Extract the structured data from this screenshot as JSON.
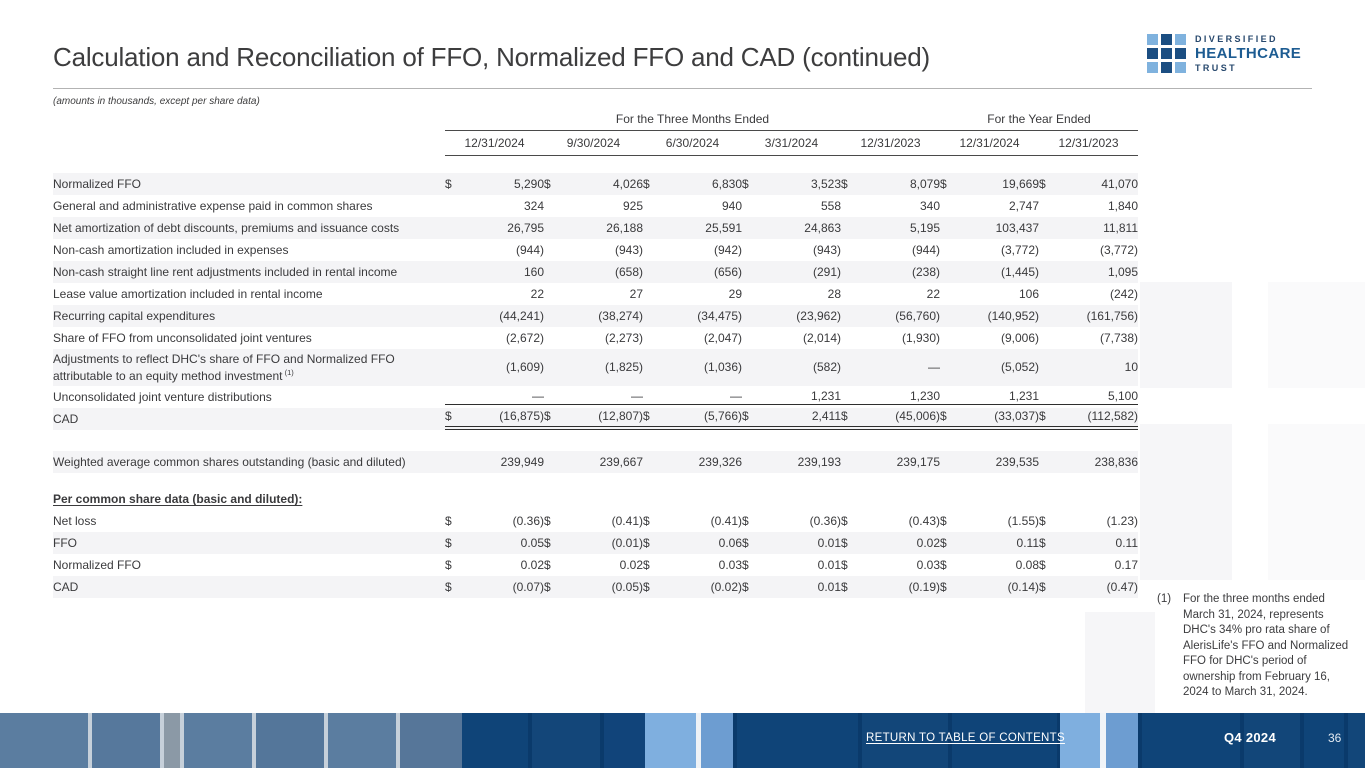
{
  "page": {
    "title": "Calculation and Reconciliation of FFO, Normalized FFO and CAD (continued)",
    "note": "(amounts in thousands, except per share data)"
  },
  "logo": {
    "line1": "DIVERSIFIED",
    "line2": "HEALTHCARE",
    "line3": "TRUST",
    "dark_blue": "#1b4e82",
    "light_blue": "#7fb2de"
  },
  "table": {
    "currency_symbol": "$",
    "group_headers": [
      {
        "label": "For the Three Months Ended",
        "span": 5
      },
      {
        "label": "For the Year Ended",
        "span": 2
      }
    ],
    "column_headers": [
      "12/31/2024",
      "9/30/2024",
      "6/30/2024",
      "3/31/2024",
      "12/31/2023",
      "12/31/2024",
      "12/31/2023"
    ],
    "rows": [
      {
        "label": "Normalized FFO",
        "dollar": true,
        "shaded": true,
        "values": [
          "5,290",
          "4,026",
          "6,830",
          "3,523",
          "8,079",
          "19,669",
          "41,070"
        ]
      },
      {
        "label": "General and administrative expense paid in common shares",
        "values": [
          "324",
          "925",
          "940",
          "558",
          "340",
          "2,747",
          "1,840"
        ]
      },
      {
        "label": "Net amortization of debt discounts, premiums and issuance costs",
        "shaded": true,
        "values": [
          "26,795",
          "26,188",
          "25,591",
          "24,863",
          "5,195",
          "103,437",
          "11,811"
        ]
      },
      {
        "label": "Non-cash amortization included in expenses",
        "values": [
          "(944)",
          "(943)",
          "(942)",
          "(943)",
          "(944)",
          "(3,772)",
          "(3,772)"
        ]
      },
      {
        "label": "Non-cash straight line rent adjustments included in rental income",
        "shaded": true,
        "values": [
          "160",
          "(658)",
          "(656)",
          "(291)",
          "(238)",
          "(1,445)",
          "1,095"
        ]
      },
      {
        "label": "Lease value amortization included in rental income",
        "values": [
          "22",
          "27",
          "29",
          "28",
          "22",
          "106",
          "(242)"
        ]
      },
      {
        "label": "Recurring capital expenditures",
        "shaded": true,
        "values": [
          "(44,241)",
          "(38,274)",
          "(34,475)",
          "(23,962)",
          "(56,760)",
          "(140,952)",
          "(161,756)"
        ]
      },
      {
        "label": "Share of FFO from unconsolidated joint ventures",
        "values": [
          "(2,672)",
          "(2,273)",
          "(2,047)",
          "(2,014)",
          "(1,930)",
          "(9,006)",
          "(7,738)"
        ]
      },
      {
        "label": "Adjustments to reflect DHC's share of FFO and Normalized FFO attributable to an equity method investment",
        "sup": "(1)",
        "twoline": true,
        "shaded": true,
        "values": [
          "(1,609)",
          "(1,825)",
          "(1,036)",
          "(582)",
          "—",
          "(5,052)",
          "10"
        ]
      },
      {
        "label": "Unconsolidated joint venture distributions",
        "rule": "single",
        "values": [
          "—",
          "—",
          "—",
          "1,231",
          "1,230",
          "1,231",
          "5,100"
        ]
      },
      {
        "label": "CAD",
        "dollar": true,
        "shaded": true,
        "rule": "double",
        "values": [
          "(16,875)",
          "(12,807)",
          "(5,766)",
          "2,411",
          "(45,006)",
          "(33,037)",
          "(112,582)"
        ]
      },
      {
        "type": "spacer"
      },
      {
        "label": "Weighted average common shares outstanding (basic and diluted)",
        "shaded": true,
        "values": [
          "239,949",
          "239,667",
          "239,326",
          "239,193",
          "239,175",
          "239,535",
          "238,836"
        ]
      },
      {
        "type": "spacer-sm"
      },
      {
        "type": "section",
        "label": "Per common share data (basic and diluted):"
      },
      {
        "label": "Net loss",
        "dollar": true,
        "values": [
          "(0.36)",
          "(0.41)",
          "(0.41)",
          "(0.36)",
          "(0.43)",
          "(1.55)",
          "(1.23)"
        ]
      },
      {
        "label": "FFO",
        "dollar": true,
        "shaded": true,
        "values": [
          "0.05",
          "(0.01)",
          "0.06",
          "0.01",
          "0.02",
          "0.11",
          "0.11"
        ]
      },
      {
        "label": "Normalized FFO",
        "dollar": true,
        "values": [
          "0.02",
          "0.02",
          "0.03",
          "0.01",
          "0.03",
          "0.08",
          "0.17"
        ]
      },
      {
        "label": "CAD",
        "dollar": true,
        "shaded": true,
        "values": [
          "(0.07)",
          "(0.05)",
          "(0.02)",
          "0.01",
          "(0.19)",
          "(0.14)",
          "(0.47)"
        ]
      }
    ]
  },
  "footnote": {
    "ref": "(1)",
    "text": "For the three months ended March 31, 2024, represents DHC's 34% pro rata share of AlerisLife's FFO and Normalized FFO for DHC's period of ownership from February 16, 2024 to March 31, 2024."
  },
  "footer": {
    "link": "RETURN TO TABLE OF CONTENTS",
    "quarter": "Q4 2024",
    "page_number": "36"
  }
}
